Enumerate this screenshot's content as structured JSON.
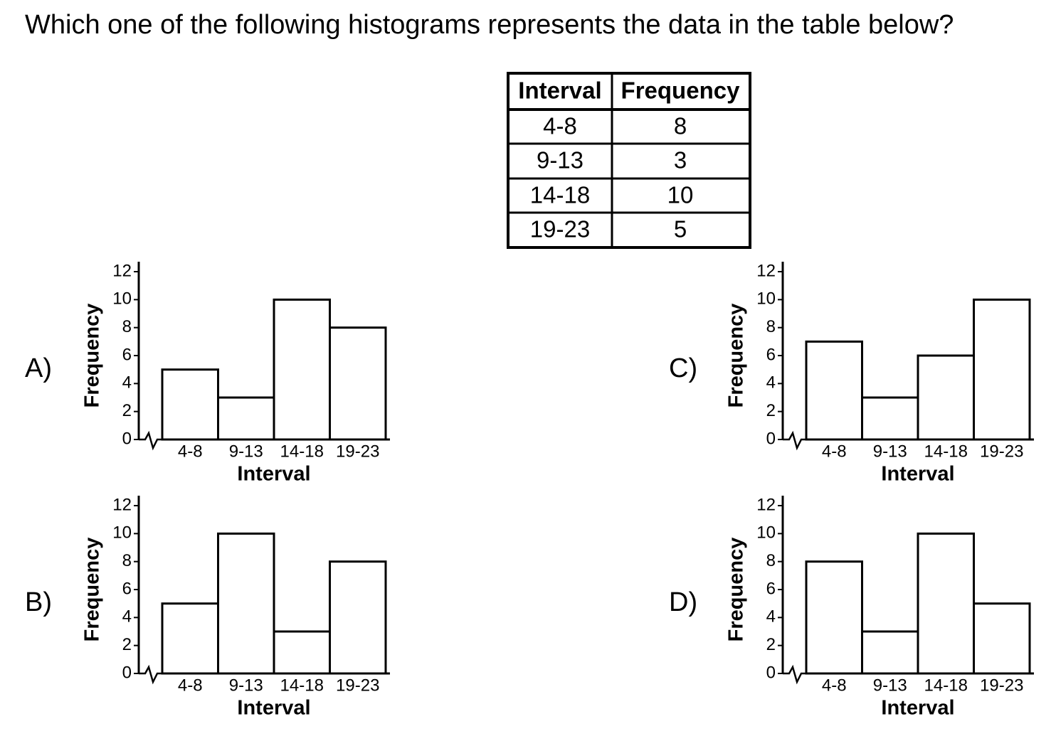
{
  "question": "Which one of the following histograms represents the data in the table below?",
  "table": {
    "header": [
      "Interval",
      "Frequency"
    ],
    "rows": [
      [
        "4-8",
        "8"
      ],
      [
        "9-13",
        "3"
      ],
      [
        "14-18",
        "10"
      ],
      [
        "19-23",
        "5"
      ]
    ]
  },
  "chart_data": [
    {
      "type": "bar",
      "label": "A)",
      "xlabel": "Interval",
      "ylabel": "Frequency",
      "categories": [
        "4-8",
        "9-13",
        "14-18",
        "19-23"
      ],
      "values": [
        5,
        3,
        10,
        8
      ],
      "ylim": [
        0,
        12
      ],
      "yticks": [
        0,
        2,
        4,
        6,
        8,
        10,
        12
      ],
      "color": "#ffffff"
    },
    {
      "type": "bar",
      "label": "B)",
      "xlabel": "Interval",
      "ylabel": "Frequency",
      "categories": [
        "4-8",
        "9-13",
        "14-18",
        "19-23"
      ],
      "values": [
        5,
        10,
        3,
        8
      ],
      "ylim": [
        0,
        12
      ],
      "yticks": [
        0,
        2,
        4,
        6,
        8,
        10,
        12
      ],
      "color": "#ffffff"
    },
    {
      "type": "bar",
      "label": "C)",
      "xlabel": "Interval",
      "ylabel": "Frequency",
      "categories": [
        "4-8",
        "9-13",
        "14-18",
        "19-23"
      ],
      "values": [
        7,
        3,
        6,
        10
      ],
      "ylim": [
        0,
        12
      ],
      "yticks": [
        0,
        2,
        4,
        6,
        8,
        10,
        12
      ],
      "color": "#ffffff"
    },
    {
      "type": "bar",
      "label": "D)",
      "xlabel": "Interval",
      "ylabel": "Frequency",
      "categories": [
        "4-8",
        "9-13",
        "14-18",
        "19-23"
      ],
      "values": [
        8,
        3,
        10,
        5
      ],
      "ylim": [
        0,
        12
      ],
      "yticks": [
        0,
        2,
        4,
        6,
        8,
        10,
        12
      ],
      "color": "#ffffff"
    }
  ]
}
